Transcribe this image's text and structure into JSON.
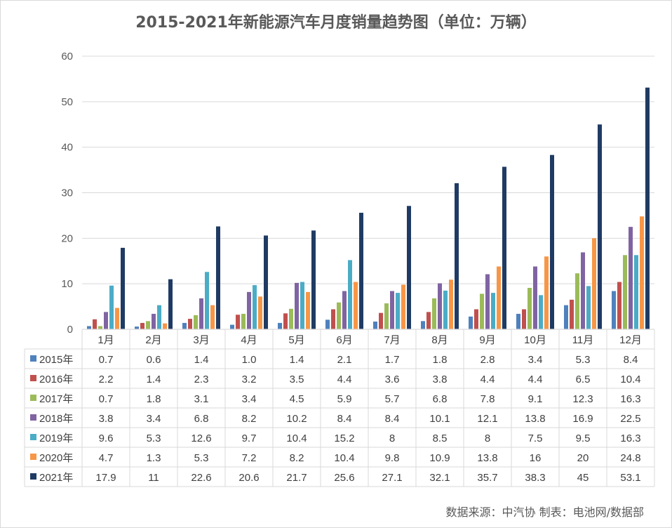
{
  "chart_data": {
    "type": "bar",
    "title": "2015-2021年新能源汽车月度销量趋势图（单位：万辆）",
    "categories": [
      "1月",
      "2月",
      "3月",
      "4月",
      "5月",
      "6月",
      "7月",
      "8月",
      "9月",
      "10月",
      "11月",
      "12月"
    ],
    "ylim": [
      0,
      60
    ],
    "yticks": [
      0,
      10,
      20,
      30,
      40,
      50,
      60
    ],
    "grid": true,
    "legend": "data-table",
    "series": [
      {
        "name": "2015年",
        "color": "#4F81BD",
        "values": [
          0.7,
          0.6,
          1.4,
          1.0,
          1.4,
          2.1,
          1.7,
          1.8,
          2.8,
          3.4,
          5.3,
          8.4
        ],
        "labels": [
          "0.7",
          "0.6",
          "1.4",
          "1.0",
          "1.4",
          "2.1",
          "1.7",
          "1.8",
          "2.8",
          "3.4",
          "5.3",
          "8.4"
        ]
      },
      {
        "name": "2016年",
        "color": "#C0504D",
        "values": [
          2.2,
          1.4,
          2.3,
          3.2,
          3.5,
          4.4,
          3.6,
          3.8,
          4.4,
          4.4,
          6.5,
          10.4
        ],
        "labels": [
          "2.2",
          "1.4",
          "2.3",
          "3.2",
          "3.5",
          "4.4",
          "3.6",
          "3.8",
          "4.4",
          "4.4",
          "6.5",
          "10.4"
        ]
      },
      {
        "name": "2017年",
        "color": "#9BBB59",
        "values": [
          0.7,
          1.8,
          3.1,
          3.4,
          4.5,
          5.9,
          5.7,
          6.8,
          7.8,
          9.1,
          12.3,
          16.3
        ],
        "labels": [
          "0.7",
          "1.8",
          "3.1",
          "3.4",
          "4.5",
          "5.9",
          "5.7",
          "6.8",
          "7.8",
          "9.1",
          "12.3",
          "16.3"
        ]
      },
      {
        "name": "2018年",
        "color": "#8064A2",
        "values": [
          3.8,
          3.4,
          6.8,
          8.2,
          10.2,
          8.4,
          8.4,
          10.1,
          12.1,
          13.8,
          16.9,
          22.5
        ],
        "labels": [
          "3.8",
          "3.4",
          "6.8",
          "8.2",
          "10.2",
          "8.4",
          "8.4",
          "10.1",
          "12.1",
          "13.8",
          "16.9",
          "22.5"
        ]
      },
      {
        "name": "2019年",
        "color": "#4BACC6",
        "values": [
          9.6,
          5.3,
          12.6,
          9.7,
          10.4,
          15.2,
          8,
          8.5,
          8,
          7.5,
          9.5,
          16.3
        ],
        "labels": [
          "9.6",
          "5.3",
          "12.6",
          "9.7",
          "10.4",
          "15.2",
          "8",
          "8.5",
          "8",
          "7.5",
          "9.5",
          "16.3"
        ]
      },
      {
        "name": "2020年",
        "color": "#F79646",
        "values": [
          4.7,
          1.3,
          5.3,
          7.2,
          8.2,
          10.4,
          9.8,
          10.9,
          13.8,
          16,
          20,
          24.8
        ],
        "labels": [
          "4.7",
          "1.3",
          "5.3",
          "7.2",
          "8.2",
          "10.4",
          "9.8",
          "10.9",
          "13.8",
          "16",
          "20",
          "24.8"
        ]
      },
      {
        "name": "2021年",
        "color": "#1F3B64",
        "values": [
          17.9,
          11,
          22.6,
          20.6,
          21.7,
          25.6,
          27.1,
          32.1,
          35.7,
          38.3,
          45,
          53.1
        ],
        "labels": [
          "17.9",
          "11",
          "22.6",
          "20.6",
          "21.7",
          "25.6",
          "27.1",
          "32.1",
          "35.7",
          "38.3",
          "45",
          "53.1"
        ]
      }
    ]
  },
  "footer": "数据来源：中汽协  制表：电池网/数据部"
}
